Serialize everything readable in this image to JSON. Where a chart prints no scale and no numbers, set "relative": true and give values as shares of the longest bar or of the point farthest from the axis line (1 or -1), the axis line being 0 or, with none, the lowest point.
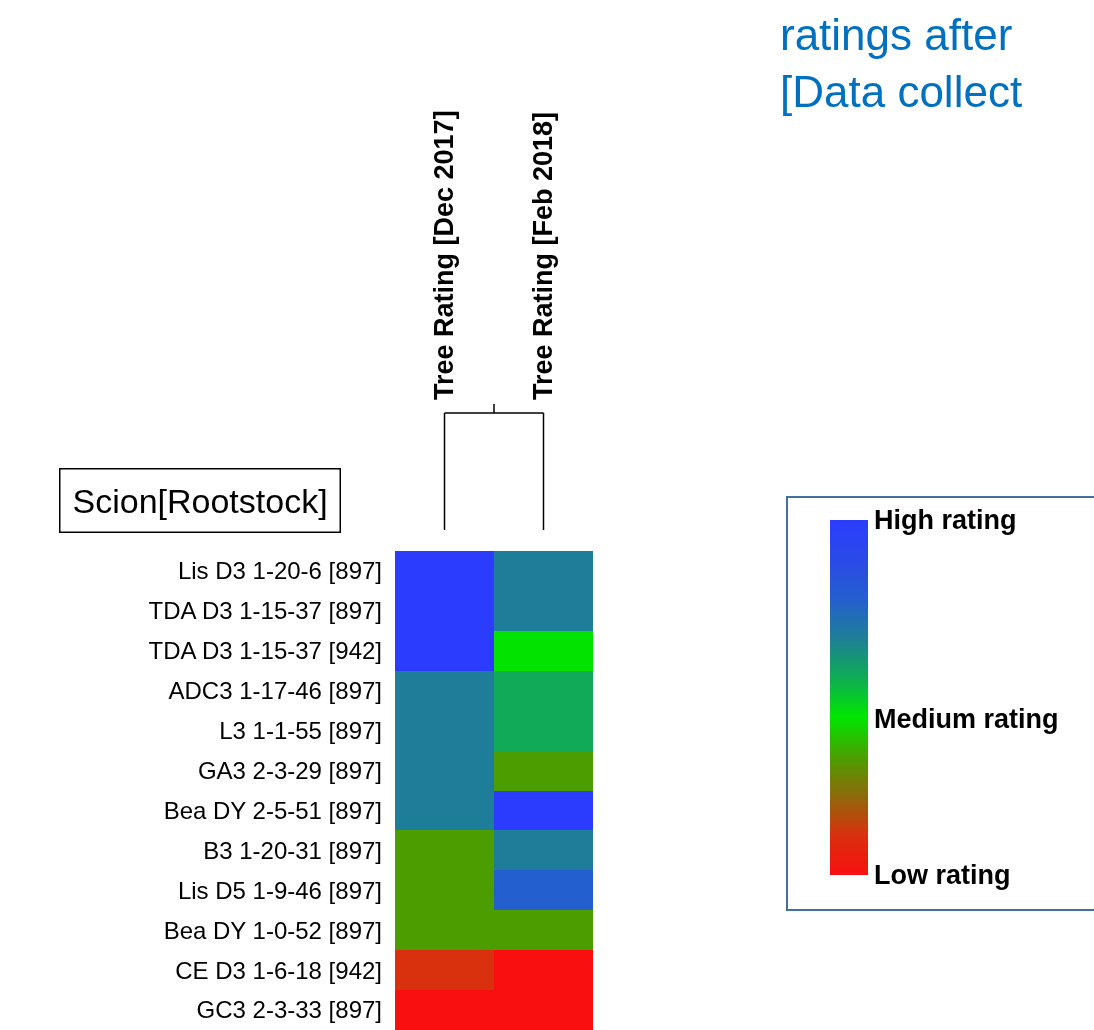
{
  "chart_data": {
    "type": "heatmap",
    "title": "ratings after\n[Data collect",
    "ylabel": "Scion[Rootstock]",
    "relative": true,
    "categories": [
      "Tree Rating [Dec 2017]",
      "Tree Rating [Feb 2018]"
    ],
    "y_categories": [
      "Lis D3 1-20-6 [897]",
      "TDA D3 1-15-37 [897]",
      "TDA D3 1-15-37 [942]",
      "ADC3 1-17-46 [897]",
      "L3 1-1-55 [897]",
      "GA3 2-3-29 [897]",
      "Bea DY 2-5-51 [897]",
      "B3 1-20-31 [897]",
      "Lis D5 1-9-46 [897]",
      "Bea DY 1-0-52 [897]",
      "CE D3 1-6-18 [942]",
      "GC3 2-3-33 [897]"
    ],
    "cells": [
      [
        1,
        0.67
      ],
      [
        1,
        0.67
      ],
      [
        1,
        0.44
      ],
      [
        0.67,
        0.56
      ],
      [
        0.67,
        0.56
      ],
      [
        0.67,
        0.33
      ],
      [
        0.67,
        1
      ],
      [
        0.33,
        0.67
      ],
      [
        0.33,
        0.78
      ],
      [
        0.33,
        0.33
      ],
      [
        0.11,
        0
      ],
      [
        0,
        0
      ]
    ],
    "colors": [
      "#f90f0f",
      "#d9300e",
      "#8e6a0a",
      "#4aa000",
      "#00e600",
      "#10ac55",
      "#1e7f97",
      "#245fce",
      "#2a4ae8",
      "#2b3cff"
    ],
    "cticks": [
      {
        "value": 1,
        "label": "High rating"
      },
      {
        "value": 0.44,
        "label": "Medium rating"
      },
      {
        "value": 0,
        "label": "Low rating"
      }
    ]
  }
}
